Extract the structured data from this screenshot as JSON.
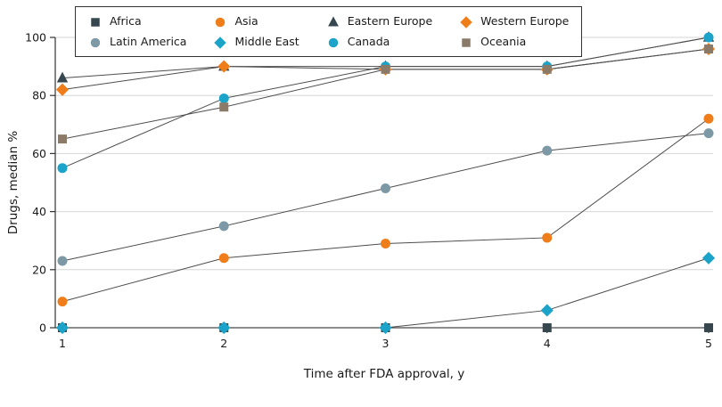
{
  "chart_data": {
    "type": "line",
    "x": [
      1,
      2,
      3,
      4,
      5
    ],
    "xlim": [
      1,
      5
    ],
    "ylim": [
      0,
      100
    ],
    "yticks": [
      0,
      20,
      40,
      60,
      80,
      100
    ],
    "xlabel": "Time after FDA approval, y",
    "ylabel": "Drugs, median %",
    "grid": true,
    "legend_position": "top",
    "series": [
      {
        "name": "Africa",
        "marker": "square",
        "color": "#37474f",
        "values": [
          0,
          0,
          0,
          0,
          0
        ]
      },
      {
        "name": "Asia",
        "marker": "circle",
        "color": "#ef7d1a",
        "values": [
          9,
          24,
          29,
          31,
          72
        ]
      },
      {
        "name": "Eastern Europe",
        "marker": "triangle",
        "color": "#37474f",
        "values": [
          86,
          90,
          90,
          90,
          100
        ]
      },
      {
        "name": "Western Europe",
        "marker": "diamond",
        "color": "#ef7d1a",
        "values": [
          82,
          90,
          89,
          89,
          96
        ]
      },
      {
        "name": "Latin America",
        "marker": "circle",
        "color": "#7d99a6",
        "values": [
          23,
          35,
          48,
          61,
          67
        ]
      },
      {
        "name": "Middle East",
        "marker": "diamond",
        "color": "#1ba3c9",
        "values": [
          0,
          0,
          0,
          6,
          24
        ]
      },
      {
        "name": "Canada",
        "marker": "circle",
        "color": "#1ba3c9",
        "values": [
          55,
          79,
          90,
          90,
          100
        ]
      },
      {
        "name": "Oceania",
        "marker": "square",
        "color": "#8b7a67",
        "values": [
          65,
          76,
          89,
          89,
          96
        ]
      }
    ],
    "style": {
      "line_color": "#4d4d4d",
      "axis_color": "#333333",
      "grid_color": "#d6d6d6",
      "text_color": "#1a1a1a",
      "background": "#ffffff"
    }
  }
}
